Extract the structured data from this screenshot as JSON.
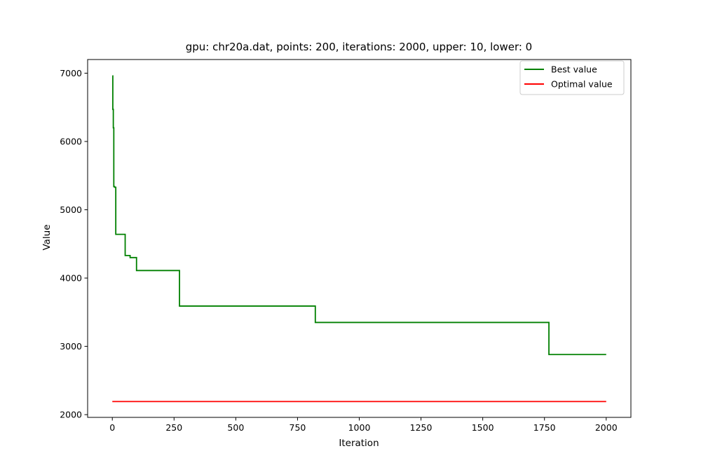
{
  "chart_data": {
    "type": "line",
    "title": "gpu: chr20a.dat, points: 200, iterations: 2000, upper: 10, lower: 0",
    "xlabel": "Iteration",
    "ylabel": "Value",
    "xlim": [
      -100,
      2100
    ],
    "ylim": [
      1960,
      7200
    ],
    "xticks": [
      0,
      250,
      500,
      750,
      1000,
      1250,
      1500,
      1750,
      2000
    ],
    "yticks": [
      2000,
      3000,
      4000,
      5000,
      6000,
      7000
    ],
    "grid": false,
    "legend_position": "upper right",
    "series": [
      {
        "name": "Best value",
        "color": "#008000",
        "step": true,
        "x": [
          0,
          2,
          4,
          6,
          9,
          14,
          52,
          72,
          98,
          272,
          822,
          1768,
          2000
        ],
        "y": [
          6960,
          6470,
          6200,
          5340,
          5330,
          4640,
          4330,
          4300,
          4110,
          3590,
          3350,
          2880,
          2880
        ]
      },
      {
        "name": "Optimal value",
        "color": "#ff0000",
        "step": false,
        "x": [
          0,
          2000
        ],
        "y": [
          2192,
          2192
        ]
      }
    ]
  }
}
